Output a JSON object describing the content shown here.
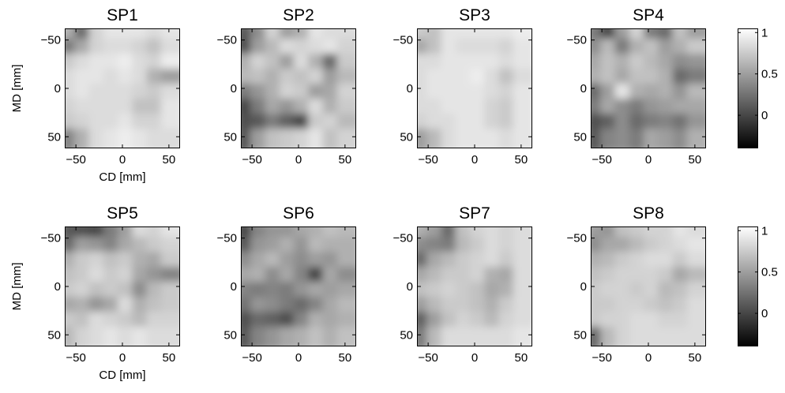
{
  "chart_data": {
    "type": "heatmap",
    "colormap": "gray",
    "color_range": [
      -0.4,
      1.05
    ],
    "colorbar_ticks": [
      "1",
      "0.5",
      "0"
    ],
    "colorbar_tick_values": [
      1,
      0.5,
      0
    ],
    "xlabel": "CD [mm]",
    "ylabel": "MD [mm]",
    "x_ticks": [
      "−50",
      "0",
      "50"
    ],
    "x_tick_values": [
      -50,
      0,
      50
    ],
    "y_ticks": [
      "−50",
      "0",
      "50"
    ],
    "y_tick_values": [
      -50,
      0,
      50
    ],
    "xlim": [
      -62,
      62
    ],
    "ylim": [
      -62,
      62
    ],
    "y_reversed": true,
    "panels": [
      {
        "title": "SP1",
        "values": [
          [
            0.6,
            0.2,
            0.8,
            0.9,
            0.9,
            0.9,
            0.85,
            0.9
          ],
          [
            0.3,
            0.55,
            0.8,
            0.85,
            0.85,
            0.8,
            0.7,
            0.85
          ],
          [
            0.75,
            0.85,
            0.9,
            0.9,
            0.95,
            0.85,
            0.8,
            0.95
          ],
          [
            0.85,
            0.9,
            0.9,
            0.85,
            0.9,
            0.85,
            0.6,
            0.5
          ],
          [
            0.85,
            0.9,
            0.85,
            0.85,
            0.85,
            0.8,
            0.75,
            0.85
          ],
          [
            0.8,
            0.85,
            0.85,
            0.85,
            0.85,
            0.7,
            0.7,
            0.9
          ],
          [
            0.75,
            0.8,
            0.85,
            0.85,
            0.9,
            0.8,
            0.8,
            0.9
          ],
          [
            0.35,
            0.6,
            0.85,
            0.9,
            0.95,
            0.9,
            0.85,
            0.85
          ]
        ]
      },
      {
        "title": "SP2",
        "values": [
          [
            0.1,
            0.4,
            0.8,
            0.5,
            0.6,
            0.9,
            0.85,
            0.85
          ],
          [
            0.05,
            0.5,
            0.65,
            0.85,
            0.8,
            0.85,
            0.9,
            0.8
          ],
          [
            0.6,
            0.8,
            0.7,
            0.5,
            0.85,
            0.6,
            0.2,
            0.75
          ],
          [
            0.65,
            0.7,
            0.6,
            0.75,
            0.7,
            0.8,
            0.5,
            0.65
          ],
          [
            0.3,
            0.45,
            0.6,
            0.8,
            0.75,
            0.5,
            0.55,
            0.8
          ],
          [
            0.0,
            0.3,
            0.55,
            0.45,
            0.6,
            0.85,
            0.6,
            0.75
          ],
          [
            0.05,
            0.1,
            0.3,
            0.15,
            0.0,
            0.75,
            0.8,
            0.65
          ],
          [
            0.1,
            0.5,
            0.7,
            0.75,
            0.8,
            0.9,
            0.7,
            0.8
          ]
        ]
      },
      {
        "title": "SP3",
        "values": [
          [
            0.75,
            0.7,
            0.9,
            0.9,
            0.9,
            0.9,
            0.9,
            0.95
          ],
          [
            0.55,
            0.7,
            0.9,
            0.85,
            0.85,
            0.85,
            0.8,
            0.9
          ],
          [
            0.85,
            0.85,
            0.9,
            0.9,
            0.9,
            0.9,
            0.85,
            0.9
          ],
          [
            0.85,
            0.9,
            0.9,
            0.9,
            0.95,
            0.85,
            0.7,
            0.85
          ],
          [
            0.85,
            0.9,
            0.9,
            0.9,
            0.9,
            0.85,
            0.8,
            0.9
          ],
          [
            0.85,
            0.85,
            0.9,
            0.9,
            0.9,
            0.8,
            0.75,
            0.9
          ],
          [
            0.8,
            0.85,
            0.85,
            0.9,
            0.9,
            0.8,
            0.75,
            0.9
          ],
          [
            0.5,
            0.65,
            0.85,
            0.9,
            0.9,
            0.9,
            0.85,
            0.9
          ]
        ]
      },
      {
        "title": "SP4",
        "values": [
          [
            0.3,
            0.0,
            0.5,
            0.8,
            0.3,
            0.2,
            0.7,
            0.5
          ],
          [
            0.4,
            0.65,
            0.3,
            0.6,
            0.7,
            0.5,
            0.6,
            0.75
          ],
          [
            0.55,
            0.7,
            0.6,
            0.75,
            0.65,
            0.55,
            0.4,
            0.45
          ],
          [
            0.6,
            0.7,
            0.55,
            0.7,
            0.7,
            0.6,
            0.2,
            0.3
          ],
          [
            0.2,
            0.5,
            0.9,
            0.6,
            0.55,
            0.6,
            0.45,
            0.65
          ],
          [
            0.3,
            0.55,
            0.4,
            0.3,
            0.45,
            0.5,
            0.55,
            0.55
          ],
          [
            0.05,
            0.15,
            0.4,
            0.2,
            0.3,
            0.35,
            0.25,
            0.45
          ],
          [
            0.1,
            0.35,
            0.4,
            0.3,
            0.55,
            0.5,
            0.4,
            0.6
          ]
        ]
      },
      {
        "title": "SP5",
        "values": [
          [
            0.1,
            0.05,
            0.0,
            0.3,
            0.5,
            0.85,
            0.8,
            0.9
          ],
          [
            0.2,
            0.5,
            0.45,
            0.35,
            0.55,
            0.65,
            0.75,
            0.8
          ],
          [
            0.6,
            0.75,
            0.8,
            0.7,
            0.75,
            0.6,
            0.55,
            0.75
          ],
          [
            0.7,
            0.75,
            0.85,
            0.75,
            0.8,
            0.55,
            0.45,
            0.35
          ],
          [
            0.75,
            0.8,
            0.7,
            0.75,
            0.7,
            0.4,
            0.65,
            0.75
          ],
          [
            0.55,
            0.6,
            0.45,
            0.55,
            0.85,
            0.6,
            0.7,
            0.75
          ],
          [
            0.75,
            0.7,
            0.85,
            0.8,
            0.75,
            0.65,
            0.8,
            0.8
          ],
          [
            0.65,
            0.8,
            0.85,
            0.9,
            0.85,
            0.9,
            0.85,
            0.85
          ]
        ]
      },
      {
        "title": "SP6",
        "values": [
          [
            0.0,
            0.35,
            0.45,
            0.45,
            0.55,
            0.6,
            0.7,
            0.65
          ],
          [
            0.1,
            0.45,
            0.5,
            0.6,
            0.45,
            0.65,
            0.6,
            0.6
          ],
          [
            0.4,
            0.55,
            0.65,
            0.5,
            0.4,
            0.5,
            0.45,
            0.6
          ],
          [
            0.55,
            0.6,
            0.4,
            0.55,
            0.35,
            0.0,
            0.55,
            0.4
          ],
          [
            0.35,
            0.3,
            0.35,
            0.3,
            0.45,
            0.55,
            0.5,
            0.55
          ],
          [
            0.25,
            0.45,
            0.4,
            0.3,
            0.2,
            0.35,
            0.55,
            0.65
          ],
          [
            0.05,
            0.2,
            0.15,
            0.05,
            0.35,
            0.6,
            0.55,
            0.6
          ],
          [
            0.1,
            0.35,
            0.45,
            0.55,
            0.6,
            0.7,
            0.6,
            0.7
          ]
        ]
      },
      {
        "title": "SP7",
        "values": [
          [
            0.6,
            0.5,
            0.2,
            0.7,
            0.8,
            0.85,
            0.8,
            0.85
          ],
          [
            0.4,
            0.35,
            0.3,
            0.65,
            0.75,
            0.85,
            0.8,
            0.85
          ],
          [
            0.2,
            0.55,
            0.65,
            0.75,
            0.8,
            0.85,
            0.75,
            0.85
          ],
          [
            0.55,
            0.65,
            0.75,
            0.75,
            0.8,
            0.6,
            0.55,
            0.85
          ],
          [
            0.7,
            0.75,
            0.8,
            0.75,
            0.7,
            0.55,
            0.6,
            0.85
          ],
          [
            0.5,
            0.65,
            0.75,
            0.75,
            0.7,
            0.6,
            0.75,
            0.85
          ],
          [
            0.15,
            0.5,
            0.7,
            0.8,
            0.75,
            0.65,
            0.8,
            0.85
          ],
          [
            0.3,
            0.65,
            0.85,
            0.85,
            0.85,
            0.85,
            0.85,
            0.9
          ]
        ]
      },
      {
        "title": "SP8",
        "values": [
          [
            0.5,
            0.45,
            0.7,
            0.75,
            0.8,
            0.8,
            0.9,
            0.85
          ],
          [
            0.4,
            0.55,
            0.55,
            0.65,
            0.75,
            0.8,
            0.85,
            0.9
          ],
          [
            0.6,
            0.65,
            0.75,
            0.8,
            0.85,
            0.85,
            0.75,
            0.85
          ],
          [
            0.7,
            0.75,
            0.8,
            0.8,
            0.8,
            0.75,
            0.55,
            0.65
          ],
          [
            0.75,
            0.8,
            0.8,
            0.75,
            0.8,
            0.65,
            0.7,
            0.8
          ],
          [
            0.75,
            0.75,
            0.8,
            0.8,
            0.75,
            0.7,
            0.75,
            0.85
          ],
          [
            0.75,
            0.8,
            0.8,
            0.85,
            0.85,
            0.8,
            0.8,
            0.85
          ],
          [
            0.2,
            0.65,
            0.8,
            0.85,
            0.85,
            0.85,
            0.85,
            0.85
          ]
        ]
      }
    ]
  }
}
